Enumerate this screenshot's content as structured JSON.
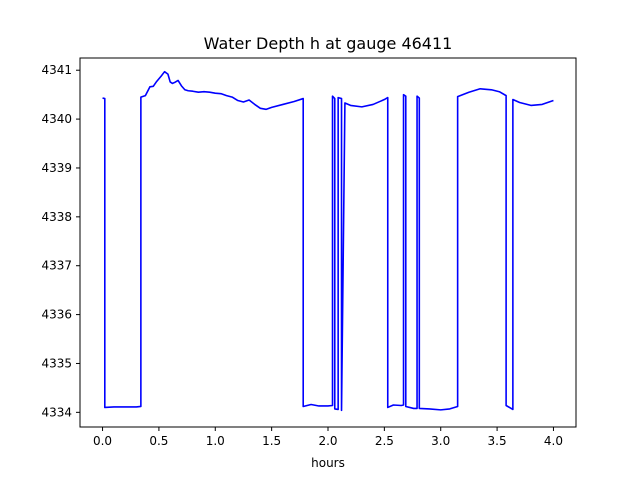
{
  "chart_data": {
    "type": "line",
    "title": "Water Depth h at gauge 46411",
    "xlabel": "hours",
    "ylabel": "",
    "xlim": [
      -0.2,
      4.2
    ],
    "ylim": [
      4333.7,
      4341.25
    ],
    "xticks": [
      "0.0",
      "0.5",
      "1.0",
      "1.5",
      "2.0",
      "2.5",
      "3.0",
      "3.5",
      "4.0"
    ],
    "yticks": [
      "4334",
      "4335",
      "4336",
      "4337",
      "4338",
      "4339",
      "4340",
      "4341"
    ],
    "grid": false,
    "line_color": "#0000ff",
    "series": [
      {
        "x": [
          0.0,
          0.02,
          0.02,
          0.1,
          0.2,
          0.3,
          0.34,
          0.34,
          0.38,
          0.42,
          0.45,
          0.48,
          0.52,
          0.55,
          0.58,
          0.6,
          0.62,
          0.64,
          0.67,
          0.7,
          0.73,
          0.76,
          0.8,
          0.85,
          0.9,
          0.95,
          1.0,
          1.05,
          1.1,
          1.15,
          1.2,
          1.25,
          1.3,
          1.35,
          1.4,
          1.45,
          1.5,
          1.6,
          1.7,
          1.78,
          1.78,
          1.85,
          1.92,
          2.0,
          2.04,
          2.04,
          2.06,
          2.06,
          2.09,
          2.09,
          2.12,
          2.12,
          2.15,
          2.2,
          2.3,
          2.4,
          2.5,
          2.53,
          2.53,
          2.58,
          2.65,
          2.67,
          2.67,
          2.69,
          2.69,
          2.76,
          2.79,
          2.79,
          2.81,
          2.81,
          2.9,
          3.0,
          3.08,
          3.15,
          3.15,
          3.25,
          3.35,
          3.45,
          3.52,
          3.58,
          3.58,
          3.64,
          3.64,
          3.7,
          3.8,
          3.9,
          4.0
        ],
        "y": [
          4340.43,
          4340.42,
          4334.1,
          4334.11,
          4334.11,
          4334.11,
          4334.12,
          4340.45,
          4340.48,
          4340.66,
          4340.67,
          4340.77,
          4340.88,
          4340.97,
          4340.92,
          4340.76,
          4340.73,
          4340.75,
          4340.79,
          4340.68,
          4340.6,
          4340.58,
          4340.57,
          4340.55,
          4340.56,
          4340.55,
          4340.53,
          4340.52,
          4340.48,
          4340.45,
          4340.38,
          4340.35,
          4340.39,
          4340.3,
          4340.22,
          4340.2,
          4340.24,
          4340.3,
          4340.36,
          4340.42,
          4334.12,
          4334.16,
          4334.13,
          4334.13,
          4334.14,
          4340.47,
          4340.42,
          4334.07,
          4334.06,
          4340.44,
          4340.42,
          4334.04,
          4340.33,
          4340.28,
          4340.25,
          4340.3,
          4340.4,
          4340.44,
          4334.1,
          4334.15,
          4334.14,
          4334.15,
          4340.5,
          4340.47,
          4334.12,
          4334.08,
          4334.08,
          4340.47,
          4340.43,
          4334.08,
          4334.07,
          4334.05,
          4334.07,
          4334.12,
          4340.46,
          4340.55,
          4340.62,
          4340.6,
          4340.56,
          4340.48,
          4334.14,
          4334.06,
          4340.4,
          4340.34,
          4340.28,
          4340.3,
          4340.38
        ]
      }
    ]
  }
}
